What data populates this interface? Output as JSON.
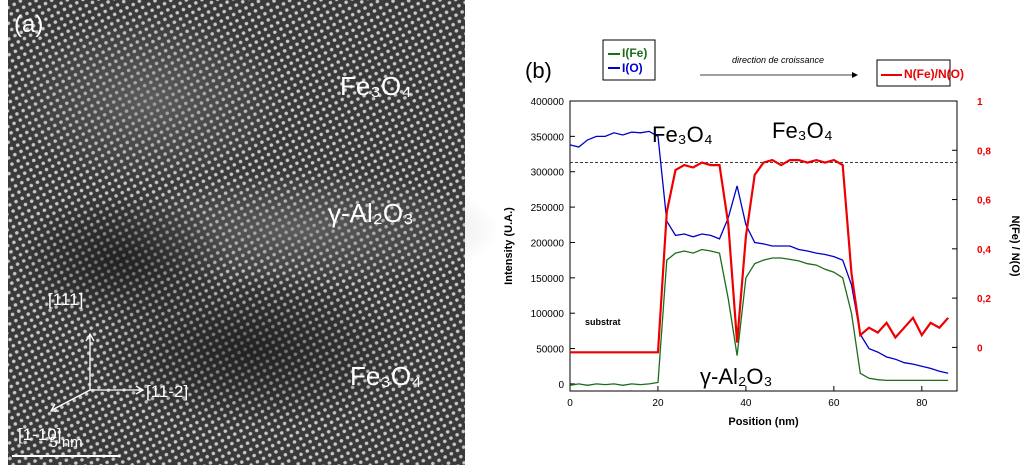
{
  "image_panel": {
    "label": "(a)",
    "phases": [
      "Fe₃O₄",
      "γ-Al₂O₃",
      "Fe₃O₄"
    ],
    "directions": [
      "[111]",
      "[11-2]",
      "[1-10]"
    ],
    "scale_bar": "5 nm"
  },
  "chart_data": {
    "type": "line",
    "panel_label": "(b)",
    "x_label": "Position (nm)",
    "y_label": "Intensity (U.A.)",
    "y2_label": "N(Fe) / N(O)",
    "legend_note": "direction de croissance",
    "annotations": [
      "Fe₃O₄",
      "Fe₃O₄",
      "γ-Al₂O₃",
      "substrat"
    ],
    "x": [
      0,
      2,
      4,
      6,
      8,
      10,
      12,
      14,
      16,
      18,
      20,
      22,
      24,
      26,
      28,
      30,
      32,
      34,
      36,
      38,
      40,
      42,
      44,
      46,
      48,
      50,
      52,
      54,
      56,
      58,
      60,
      62,
      64,
      66,
      68,
      70,
      72,
      74,
      76,
      78,
      80,
      82,
      84,
      86
    ],
    "series": [
      {
        "name": "I(Fe)",
        "color": "#1a6e1a",
        "values": [
          -2000,
          0,
          -2000,
          0,
          -1000,
          0,
          -2000,
          0,
          -1000,
          0,
          2000,
          175000,
          185000,
          188000,
          185000,
          190000,
          188000,
          185000,
          120000,
          40000,
          150000,
          170000,
          175000,
          178000,
          178000,
          176000,
          174000,
          170000,
          168000,
          162000,
          158000,
          150000,
          100000,
          15000,
          8000,
          6000,
          5000,
          5000,
          5000,
          5000,
          5000,
          5000,
          5000,
          5000
        ]
      },
      {
        "name": "I(O)",
        "color": "#0000cc",
        "values": [
          338000,
          335000,
          345000,
          350000,
          350000,
          355000,
          352000,
          356000,
          355000,
          357000,
          350000,
          230000,
          210000,
          212000,
          208000,
          212000,
          210000,
          205000,
          235000,
          280000,
          225000,
          200000,
          198000,
          195000,
          195000,
          195000,
          190000,
          188000,
          185000,
          183000,
          180000,
          175000,
          140000,
          70000,
          50000,
          45000,
          38000,
          35000,
          30000,
          28000,
          25000,
          22000,
          18000,
          15000
        ]
      },
      {
        "name": "N(Fe)/N(O)",
        "color": "#ee0000",
        "axis": "y2",
        "values": [
          -0.02,
          -0.02,
          -0.02,
          -0.02,
          -0.02,
          -0.02,
          -0.02,
          -0.02,
          -0.02,
          -0.02,
          -0.02,
          0.55,
          0.72,
          0.74,
          0.73,
          0.75,
          0.74,
          0.74,
          0.5,
          0.02,
          0.45,
          0.7,
          0.75,
          0.76,
          0.74,
          0.76,
          0.76,
          0.75,
          0.76,
          0.75,
          0.76,
          0.74,
          0.3,
          0.05,
          0.08,
          0.06,
          0.1,
          0.04,
          0.08,
          0.12,
          0.05,
          0.1,
          0.08,
          0.12
        ]
      }
    ],
    "reference_lines": [
      {
        "value": 0.75,
        "axis": "y2",
        "style": "dashed"
      }
    ],
    "xlim": [
      0,
      88
    ],
    "xticks": [
      0,
      20,
      40,
      60,
      80
    ],
    "ylim": [
      -10000,
      400000
    ],
    "yticks": [
      0,
      50000,
      100000,
      150000,
      200000,
      250000,
      300000,
      350000,
      400000
    ],
    "y2lim": [
      -0.177,
      1
    ],
    "y2ticks": [
      0,
      {
        "value": 0.2,
        "label": "0,2"
      },
      {
        "value": 0.4,
        "label": "0,4"
      },
      {
        "value": 0.6,
        "label": "0,6"
      },
      {
        "value": 0.8,
        "label": "0,8"
      },
      1
    ]
  }
}
